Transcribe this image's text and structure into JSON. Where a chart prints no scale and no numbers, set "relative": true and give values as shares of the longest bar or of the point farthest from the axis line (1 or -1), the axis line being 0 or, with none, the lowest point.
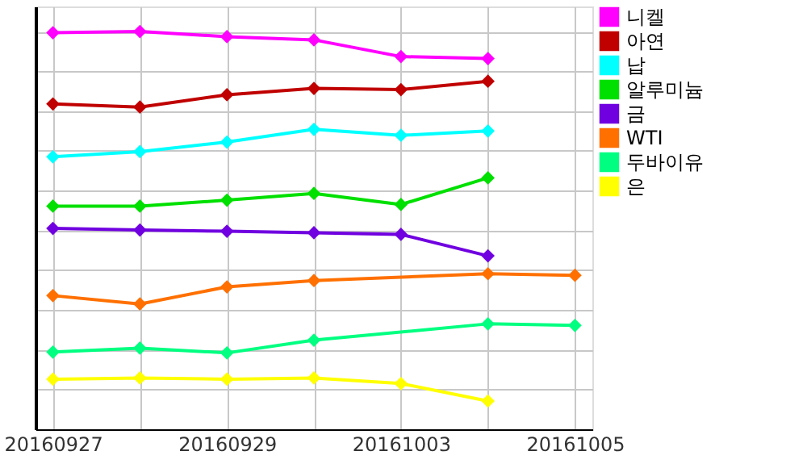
{
  "chart_data": {
    "type": "line",
    "relative": true,
    "grid": true,
    "legend": "right",
    "marker": "diamond",
    "line_style": "solid",
    "categories": [
      "20160927",
      null,
      "20160929",
      null,
      "20161003",
      null,
      "20161005"
    ],
    "series": [
      {
        "name": "니켈",
        "color": "#ff00ff",
        "values": [
          0.997,
          1.0,
          0.987,
          0.979,
          0.937,
          0.932,
          null
        ]
      },
      {
        "name": "아연",
        "color": "#c00000",
        "values": [
          0.818,
          0.81,
          0.841,
          0.857,
          0.854,
          0.875,
          null
        ]
      },
      {
        "name": "납",
        "color": "#00ffff",
        "values": [
          0.685,
          0.698,
          0.722,
          0.754,
          0.739,
          0.75,
          null
        ]
      },
      {
        "name": "알루미늄",
        "color": "#00e000",
        "values": [
          0.561,
          0.561,
          0.576,
          0.593,
          0.565,
          0.632,
          null
        ]
      },
      {
        "name": "금",
        "color": "#7000e0",
        "values": [
          0.505,
          0.501,
          0.498,
          0.494,
          0.49,
          0.436,
          null
        ]
      },
      {
        "name": "WTI",
        "color": "#ff7000",
        "values": [
          0.336,
          0.315,
          0.358,
          0.374,
          null,
          0.391,
          0.387
        ]
      },
      {
        "name": "두바이유",
        "color": "#00ff80",
        "values": [
          0.194,
          0.204,
          0.192,
          0.224,
          null,
          0.265,
          0.261
        ]
      },
      {
        "name": "은",
        "color": "#ffff00",
        "values": [
          0.126,
          0.129,
          0.126,
          0.129,
          0.115,
          0.071,
          null
        ]
      }
    ]
  }
}
